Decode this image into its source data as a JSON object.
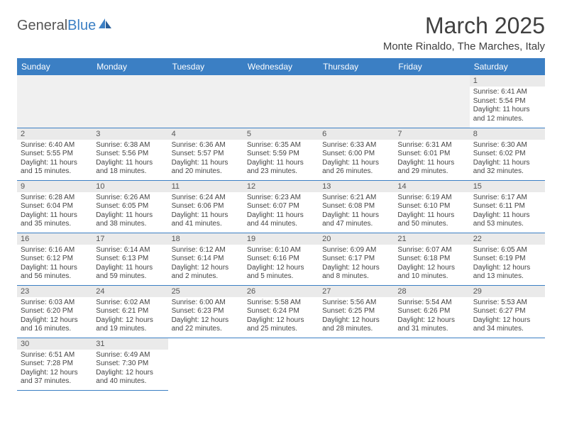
{
  "brand": {
    "part1": "General",
    "part2": "Blue"
  },
  "title": "March 2025",
  "location": "Monte Rinaldo, The Marches, Italy",
  "colors": {
    "header_bg": "#3b7fc4",
    "header_text": "#ffffff",
    "daynum_bg": "#eaeaea",
    "row_border": "#3b7fc4",
    "empty_lead_bg": "#f0f0f0"
  },
  "typography": {
    "title_fontsize": 32,
    "location_fontsize": 15,
    "header_fontsize": 12,
    "daynum_fontsize": 11,
    "info_fontsize": 10
  },
  "day_headers": [
    "Sunday",
    "Monday",
    "Tuesday",
    "Wednesday",
    "Thursday",
    "Friday",
    "Saturday"
  ],
  "leading_blanks": 6,
  "trailing_blanks": 5,
  "days": [
    {
      "n": "1",
      "sunrise": "Sunrise: 6:41 AM",
      "sunset": "Sunset: 5:54 PM",
      "daylight": "Daylight: 11 hours and 12 minutes."
    },
    {
      "n": "2",
      "sunrise": "Sunrise: 6:40 AM",
      "sunset": "Sunset: 5:55 PM",
      "daylight": "Daylight: 11 hours and 15 minutes."
    },
    {
      "n": "3",
      "sunrise": "Sunrise: 6:38 AM",
      "sunset": "Sunset: 5:56 PM",
      "daylight": "Daylight: 11 hours and 18 minutes."
    },
    {
      "n": "4",
      "sunrise": "Sunrise: 6:36 AM",
      "sunset": "Sunset: 5:57 PM",
      "daylight": "Daylight: 11 hours and 20 minutes."
    },
    {
      "n": "5",
      "sunrise": "Sunrise: 6:35 AM",
      "sunset": "Sunset: 5:59 PM",
      "daylight": "Daylight: 11 hours and 23 minutes."
    },
    {
      "n": "6",
      "sunrise": "Sunrise: 6:33 AM",
      "sunset": "Sunset: 6:00 PM",
      "daylight": "Daylight: 11 hours and 26 minutes."
    },
    {
      "n": "7",
      "sunrise": "Sunrise: 6:31 AM",
      "sunset": "Sunset: 6:01 PM",
      "daylight": "Daylight: 11 hours and 29 minutes."
    },
    {
      "n": "8",
      "sunrise": "Sunrise: 6:30 AM",
      "sunset": "Sunset: 6:02 PM",
      "daylight": "Daylight: 11 hours and 32 minutes."
    },
    {
      "n": "9",
      "sunrise": "Sunrise: 6:28 AM",
      "sunset": "Sunset: 6:04 PM",
      "daylight": "Daylight: 11 hours and 35 minutes."
    },
    {
      "n": "10",
      "sunrise": "Sunrise: 6:26 AM",
      "sunset": "Sunset: 6:05 PM",
      "daylight": "Daylight: 11 hours and 38 minutes."
    },
    {
      "n": "11",
      "sunrise": "Sunrise: 6:24 AM",
      "sunset": "Sunset: 6:06 PM",
      "daylight": "Daylight: 11 hours and 41 minutes."
    },
    {
      "n": "12",
      "sunrise": "Sunrise: 6:23 AM",
      "sunset": "Sunset: 6:07 PM",
      "daylight": "Daylight: 11 hours and 44 minutes."
    },
    {
      "n": "13",
      "sunrise": "Sunrise: 6:21 AM",
      "sunset": "Sunset: 6:08 PM",
      "daylight": "Daylight: 11 hours and 47 minutes."
    },
    {
      "n": "14",
      "sunrise": "Sunrise: 6:19 AM",
      "sunset": "Sunset: 6:10 PM",
      "daylight": "Daylight: 11 hours and 50 minutes."
    },
    {
      "n": "15",
      "sunrise": "Sunrise: 6:17 AM",
      "sunset": "Sunset: 6:11 PM",
      "daylight": "Daylight: 11 hours and 53 minutes."
    },
    {
      "n": "16",
      "sunrise": "Sunrise: 6:16 AM",
      "sunset": "Sunset: 6:12 PM",
      "daylight": "Daylight: 11 hours and 56 minutes."
    },
    {
      "n": "17",
      "sunrise": "Sunrise: 6:14 AM",
      "sunset": "Sunset: 6:13 PM",
      "daylight": "Daylight: 11 hours and 59 minutes."
    },
    {
      "n": "18",
      "sunrise": "Sunrise: 6:12 AM",
      "sunset": "Sunset: 6:14 PM",
      "daylight": "Daylight: 12 hours and 2 minutes."
    },
    {
      "n": "19",
      "sunrise": "Sunrise: 6:10 AM",
      "sunset": "Sunset: 6:16 PM",
      "daylight": "Daylight: 12 hours and 5 minutes."
    },
    {
      "n": "20",
      "sunrise": "Sunrise: 6:09 AM",
      "sunset": "Sunset: 6:17 PM",
      "daylight": "Daylight: 12 hours and 8 minutes."
    },
    {
      "n": "21",
      "sunrise": "Sunrise: 6:07 AM",
      "sunset": "Sunset: 6:18 PM",
      "daylight": "Daylight: 12 hours and 10 minutes."
    },
    {
      "n": "22",
      "sunrise": "Sunrise: 6:05 AM",
      "sunset": "Sunset: 6:19 PM",
      "daylight": "Daylight: 12 hours and 13 minutes."
    },
    {
      "n": "23",
      "sunrise": "Sunrise: 6:03 AM",
      "sunset": "Sunset: 6:20 PM",
      "daylight": "Daylight: 12 hours and 16 minutes."
    },
    {
      "n": "24",
      "sunrise": "Sunrise: 6:02 AM",
      "sunset": "Sunset: 6:21 PM",
      "daylight": "Daylight: 12 hours and 19 minutes."
    },
    {
      "n": "25",
      "sunrise": "Sunrise: 6:00 AM",
      "sunset": "Sunset: 6:23 PM",
      "daylight": "Daylight: 12 hours and 22 minutes."
    },
    {
      "n": "26",
      "sunrise": "Sunrise: 5:58 AM",
      "sunset": "Sunset: 6:24 PM",
      "daylight": "Daylight: 12 hours and 25 minutes."
    },
    {
      "n": "27",
      "sunrise": "Sunrise: 5:56 AM",
      "sunset": "Sunset: 6:25 PM",
      "daylight": "Daylight: 12 hours and 28 minutes."
    },
    {
      "n": "28",
      "sunrise": "Sunrise: 5:54 AM",
      "sunset": "Sunset: 6:26 PM",
      "daylight": "Daylight: 12 hours and 31 minutes."
    },
    {
      "n": "29",
      "sunrise": "Sunrise: 5:53 AM",
      "sunset": "Sunset: 6:27 PM",
      "daylight": "Daylight: 12 hours and 34 minutes."
    },
    {
      "n": "30",
      "sunrise": "Sunrise: 6:51 AM",
      "sunset": "Sunset: 7:28 PM",
      "daylight": "Daylight: 12 hours and 37 minutes."
    },
    {
      "n": "31",
      "sunrise": "Sunrise: 6:49 AM",
      "sunset": "Sunset: 7:30 PM",
      "daylight": "Daylight: 12 hours and 40 minutes."
    }
  ]
}
